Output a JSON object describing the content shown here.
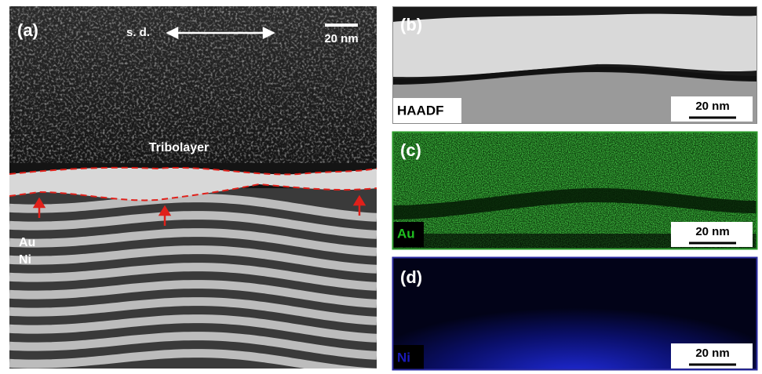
{
  "panels": [
    {
      "label": "(a)",
      "direction": "s. d.",
      "scale_bar": "20 nm",
      "annotations": [
        "Tribolayer",
        "Au",
        "Ni"
      ]
    },
    {
      "label": "(b)",
      "signal": "HAADF",
      "scale_bar": "20 nm"
    },
    {
      "label": "(c)",
      "signal": "Au",
      "scale_bar": "20 nm"
    },
    {
      "label": "(d)",
      "signal": "Ni",
      "scale_bar": "20 nm"
    }
  ]
}
